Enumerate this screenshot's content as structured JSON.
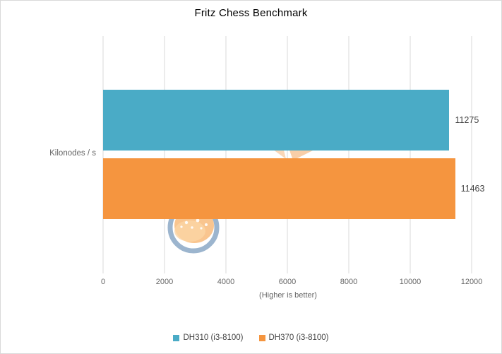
{
  "title": "Fritz Chess Benchmark",
  "axis": {
    "category_label": "Kilonodes / s",
    "x_label": "(Higher is better)"
  },
  "legend": [
    {
      "label": "DH310 (i3-8100)",
      "color": "#4aabc6"
    },
    {
      "label": "DH370 (i3-8100)",
      "color": "#f5953f"
    }
  ],
  "watermark": {
    "ring_color": "#8ba8c6",
    "ball_color": "#f9c289",
    "blade_color": "#f3a660"
  },
  "chart_data": {
    "type": "bar",
    "orientation": "horizontal",
    "title": "Fritz Chess Benchmark",
    "categories": [
      "Kilonodes / s"
    ],
    "series": [
      {
        "name": "DH310 (i3-8100)",
        "values": [
          11275
        ],
        "color": "#4aabc6"
      },
      {
        "name": "DH370 (i3-8100)",
        "values": [
          11463
        ],
        "color": "#f5953f"
      }
    ],
    "value_labels": [
      "11275",
      "11463"
    ],
    "xlabel": "(Higher is better)",
    "xlim": [
      0,
      12000
    ],
    "x_ticks": [
      0,
      2000,
      4000,
      6000,
      8000,
      10000,
      12000
    ],
    "grid": true,
    "gridline_color": "#d9d9d9",
    "legend_position": "bottom"
  }
}
